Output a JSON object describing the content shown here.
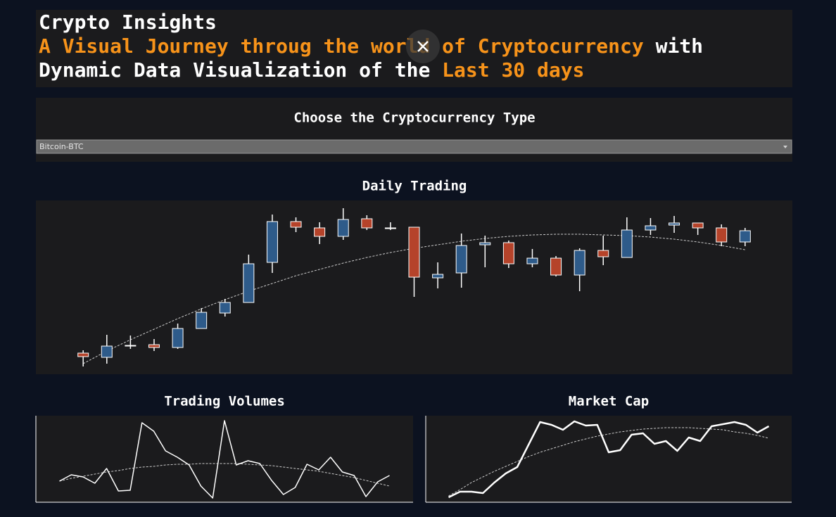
{
  "header": {
    "title": "Crypto Insights",
    "lines": [
      [
        {
          "text": "A Visual Journey throug the world of Cryptocurrency",
          "color": "#f7931a"
        },
        {
          "text": " with",
          "color": "#ffffff"
        }
      ],
      [
        {
          "text": "Dynamic Data Visualization of the ",
          "color": "#ffffff"
        },
        {
          "text": "Last 30 days",
          "color": "#f7931a"
        }
      ]
    ]
  },
  "selector": {
    "label": "Choose the Cryptocurrency Type",
    "selected": "Bitcoin-BTC"
  },
  "chart_data": [
    {
      "type": "candlestick",
      "title": "Daily Trading",
      "ylim": [
        0,
        247
      ],
      "up_color": "#2e5b8a",
      "down_color": "#b5432a",
      "open": [
        30,
        24,
        41,
        42,
        38,
        65,
        87,
        102,
        159,
        217,
        208,
        196,
        221,
        208,
        209,
        137,
        144,
        184,
        187,
        157,
        165,
        141,
        176,
        166,
        205,
        212,
        215,
        208,
        188
      ],
      "high": [
        34,
        56,
        55,
        50,
        72,
        94,
        107,
        170,
        227,
        223,
        216,
        236,
        226,
        216,
        209,
        159,
        200,
        197,
        190,
        178,
        168,
        179,
        197,
        223,
        222,
        225,
        215,
        213,
        208
      ],
      "low": [
        11,
        15,
        36,
        33,
        36,
        65,
        82,
        102,
        144,
        202,
        185,
        191,
        205,
        205,
        110,
        122,
        123,
        152,
        151,
        152,
        139,
        118,
        155,
        166,
        198,
        201,
        198,
        182,
        182
      ],
      "close": [
        25,
        40,
        41,
        38,
        65,
        88,
        102,
        157,
        217,
        209,
        196,
        220,
        208,
        208,
        138,
        142,
        183,
        187,
        157,
        165,
        141,
        176,
        167,
        205,
        211,
        215,
        208,
        188,
        204
      ],
      "trend": {
        "color": "#cccccc",
        "values": [
          15,
          33,
          49,
          64,
          79,
          93,
          106,
          118,
          129,
          140,
          149,
          158,
          166,
          173,
          179,
          184,
          189,
          193,
          196,
          198,
          199,
          199,
          198,
          197,
          195,
          192,
          188,
          183,
          177
        ]
      }
    },
    {
      "type": "line",
      "title": "Trading Volumes",
      "ylim": [
        0,
        123
      ],
      "color": "#ffffff",
      "values": [
        30,
        39,
        36,
        27,
        48,
        16,
        17,
        113,
        101,
        73,
        64,
        53,
        23,
        6,
        116,
        53,
        59,
        55,
        31,
        11,
        21,
        54,
        46,
        64,
        43,
        38,
        8,
        29,
        38
      ],
      "trend": {
        "color": "#cccccc",
        "values": [
          30,
          34,
          37,
          40,
          43,
          45,
          48,
          50,
          51,
          53,
          54,
          54,
          55,
          55,
          55,
          55,
          54,
          53,
          52,
          50,
          48,
          46,
          44,
          41,
          38,
          35,
          31,
          27,
          23
        ]
      }
    },
    {
      "type": "line",
      "title": "Market Cap",
      "ylim": [
        0,
        123
      ],
      "color": "#ffffff",
      "values": [
        7,
        15,
        15,
        13,
        28,
        41,
        50,
        82,
        114,
        110,
        103,
        115,
        109,
        110,
        71,
        74,
        96,
        98,
        83,
        87,
        73,
        92,
        87,
        108,
        111,
        114,
        110,
        99,
        108
      ],
      "trend": {
        "color": "#cccccc",
        "values": [
          9,
          18,
          28,
          36,
          44,
          51,
          58,
          65,
          71,
          76,
          81,
          86,
          90,
          94,
          97,
          100,
          102,
          104,
          105,
          106,
          106,
          106,
          105,
          104,
          103,
          100,
          98,
          95,
          91
        ]
      }
    }
  ]
}
